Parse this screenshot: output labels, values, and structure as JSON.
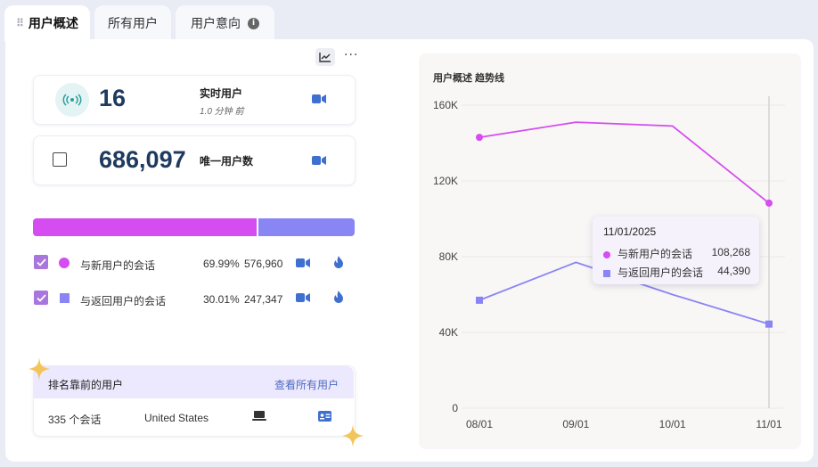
{
  "tabs": [
    {
      "label": "用户概述"
    },
    {
      "label": "所有用户"
    },
    {
      "label": "用户意向"
    }
  ],
  "realtime": {
    "value": "16",
    "label": "实时用户",
    "sub": "1.0 分钟 前"
  },
  "unique": {
    "value": "686,097",
    "label": "唯一用户数"
  },
  "sessions": {
    "split": {
      "new_pct": 69.99,
      "returning_pct": 30.01
    },
    "rows": [
      {
        "label": "与新用户的会话",
        "pct": "69.99%",
        "count": "576,960"
      },
      {
        "label": "与返回用户的会话",
        "pct": "30.01%",
        "count": "247,347"
      }
    ]
  },
  "top_users": {
    "title": "排名靠前的用户",
    "link": "查看所有用户",
    "row": {
      "sessions": "335 个会话",
      "country": "United States"
    }
  },
  "colors": {
    "new": "#d54cf0",
    "returning": "#8a85f5",
    "accent": "#4b6bc4"
  },
  "chart_data": {
    "type": "line",
    "title": "用户概述 趋势线",
    "x": [
      "08/01",
      "09/01",
      "10/01",
      "11/01"
    ],
    "ytick_labels": [
      "0",
      "40K",
      "80K",
      "120K",
      "160K"
    ],
    "ylim": [
      0,
      160000
    ],
    "grid": true,
    "series": [
      {
        "name": "与新用户的会话",
        "values": [
          143000,
          151000,
          149000,
          108268
        ]
      },
      {
        "name": "与返回用户的会话",
        "values": [
          57000,
          77000,
          60000,
          44390
        ]
      }
    ]
  },
  "tooltip": {
    "date": "11/01/2025",
    "rows": [
      {
        "label": "与新用户的会话",
        "value": "108,268"
      },
      {
        "label": "与返回用户的会话",
        "value": "44,390"
      }
    ]
  }
}
